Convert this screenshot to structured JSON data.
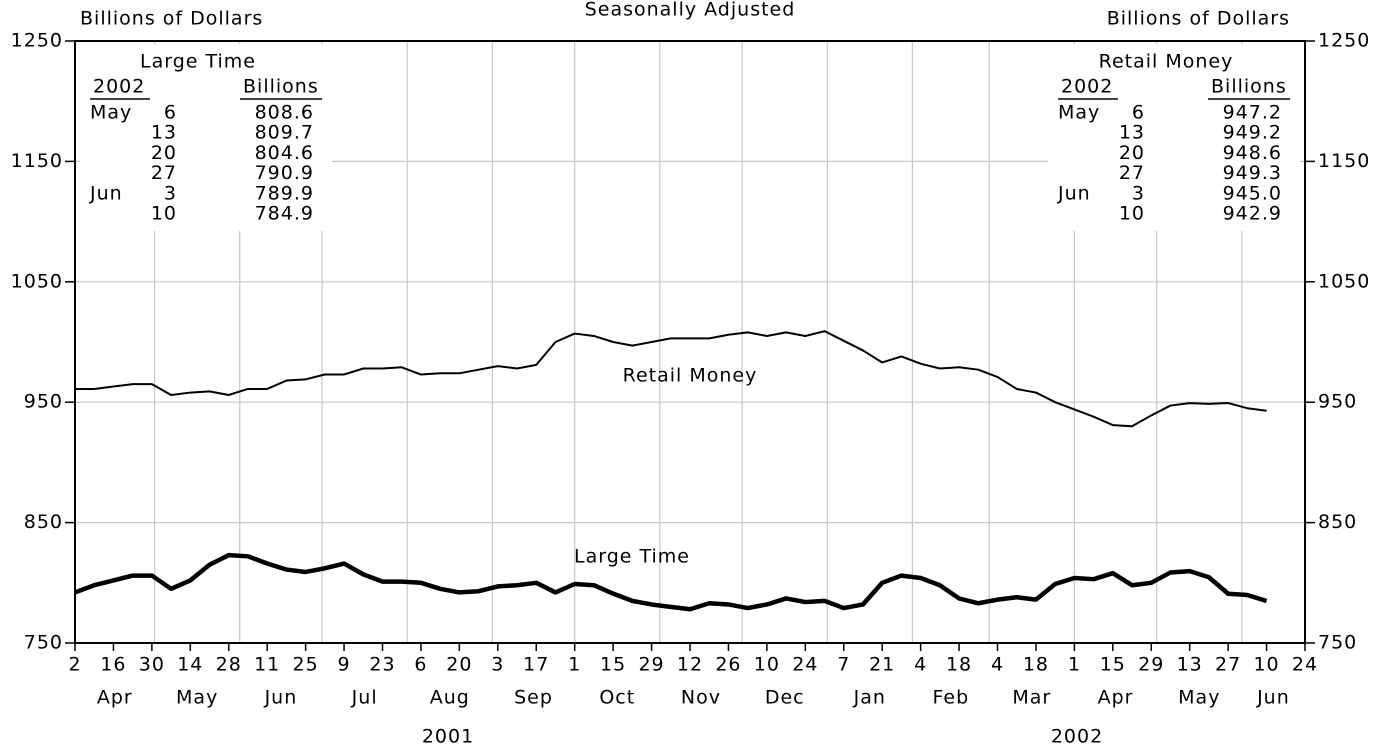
{
  "chart_data": {
    "type": "line",
    "title": "Seasonally Adjusted",
    "y_label_left": "Billions of Dollars",
    "y_label_right": "Billions of Dollars",
    "x": [
      "2001-04-02",
      "2001-04-09",
      "2001-04-16",
      "2001-04-23",
      "2001-04-30",
      "2001-05-07",
      "2001-05-14",
      "2001-05-21",
      "2001-05-28",
      "2001-06-04",
      "2001-06-11",
      "2001-06-18",
      "2001-06-25",
      "2001-07-02",
      "2001-07-09",
      "2001-07-16",
      "2001-07-23",
      "2001-07-30",
      "2001-08-06",
      "2001-08-13",
      "2001-08-20",
      "2001-08-27",
      "2001-09-03",
      "2001-09-10",
      "2001-09-17",
      "2001-09-24",
      "2001-10-01",
      "2001-10-08",
      "2001-10-15",
      "2001-10-22",
      "2001-10-29",
      "2001-11-05",
      "2001-11-12",
      "2001-11-19",
      "2001-11-26",
      "2001-12-03",
      "2001-12-10",
      "2001-12-17",
      "2001-12-24",
      "2001-12-31",
      "2002-01-07",
      "2002-01-14",
      "2002-01-21",
      "2002-01-28",
      "2002-02-04",
      "2002-02-11",
      "2002-02-18",
      "2002-02-25",
      "2002-03-04",
      "2002-03-11",
      "2002-03-18",
      "2002-03-25",
      "2002-04-01",
      "2002-04-08",
      "2002-04-15",
      "2002-04-22",
      "2002-04-29",
      "2002-05-06",
      "2002-05-13",
      "2002-05-20",
      "2002-05-27",
      "2002-06-03",
      "2002-06-10"
    ],
    "xlim": [
      "2001-04-02",
      "2002-06-24"
    ],
    "xticks": [
      {
        "value": "2001-04-02",
        "label": "2"
      },
      {
        "value": "2001-04-16",
        "label": "16"
      },
      {
        "value": "2001-04-30",
        "label": "30"
      },
      {
        "value": "2001-05-14",
        "label": "14"
      },
      {
        "value": "2001-05-28",
        "label": "28"
      },
      {
        "value": "2001-06-11",
        "label": "11"
      },
      {
        "value": "2001-06-25",
        "label": "25"
      },
      {
        "value": "2001-07-09",
        "label": "9"
      },
      {
        "value": "2001-07-23",
        "label": "23"
      },
      {
        "value": "2001-08-06",
        "label": "6"
      },
      {
        "value": "2001-08-20",
        "label": "20"
      },
      {
        "value": "2001-09-03",
        "label": "3"
      },
      {
        "value": "2001-09-17",
        "label": "17"
      },
      {
        "value": "2001-10-01",
        "label": "1"
      },
      {
        "value": "2001-10-15",
        "label": "15"
      },
      {
        "value": "2001-10-29",
        "label": "29"
      },
      {
        "value": "2001-11-12",
        "label": "12"
      },
      {
        "value": "2001-11-26",
        "label": "26"
      },
      {
        "value": "2001-12-10",
        "label": "10"
      },
      {
        "value": "2001-12-24",
        "label": "24"
      },
      {
        "value": "2002-01-07",
        "label": "7"
      },
      {
        "value": "2002-01-21",
        "label": "21"
      },
      {
        "value": "2002-02-04",
        "label": "4"
      },
      {
        "value": "2002-02-18",
        "label": "18"
      },
      {
        "value": "2002-03-04",
        "label": "4"
      },
      {
        "value": "2002-03-18",
        "label": "18"
      },
      {
        "value": "2002-04-01",
        "label": "1"
      },
      {
        "value": "2002-04-15",
        "label": "15"
      },
      {
        "value": "2002-04-29",
        "label": "29"
      },
      {
        "value": "2002-05-13",
        "label": "13"
      },
      {
        "value": "2002-05-27",
        "label": "27"
      },
      {
        "value": "2002-06-10",
        "label": "10"
      },
      {
        "value": "2002-06-24",
        "label": "24"
      }
    ],
    "xgrid": [
      "2001-05-01",
      "2001-06-01",
      "2001-07-01",
      "2001-08-01",
      "2001-09-01",
      "2001-10-01",
      "2001-11-01",
      "2001-12-01",
      "2002-01-01",
      "2002-02-01",
      "2002-03-01",
      "2002-04-01",
      "2002-05-01",
      "2002-06-01"
    ],
    "month_labels": [
      "Apr",
      "May",
      "Jun",
      "Jul",
      "Aug",
      "Sep",
      "Oct",
      "Nov",
      "Dec",
      "Jan",
      "Feb",
      "Mar",
      "Apr",
      "May",
      "Jun"
    ],
    "year_labels": [
      "2001",
      "2002"
    ],
    "ylim": [
      750,
      1250
    ],
    "yticks": [
      750,
      850,
      950,
      1050,
      1150,
      1250
    ],
    "y2lim": [
      750,
      1250
    ],
    "y2ticks": [
      750,
      850,
      950,
      1050,
      1150,
      1250
    ],
    "grid": true,
    "series": [
      {
        "name": "Retail Money",
        "color": "#000000",
        "line_width": 2,
        "values": [
          961,
          961,
          963,
          965,
          965,
          956,
          958,
          959,
          956,
          961,
          961,
          968,
          969,
          973,
          973,
          978,
          978,
          979,
          973,
          974,
          974,
          977,
          980,
          978,
          981,
          1000,
          1007,
          1005,
          1000,
          997,
          1000,
          1003,
          1003,
          1003,
          1006,
          1008,
          1005,
          1008,
          1005,
          1009,
          1001,
          993,
          983,
          988,
          982,
          978,
          979,
          977,
          971,
          961,
          958,
          950,
          944,
          938,
          931,
          930,
          939,
          947.2,
          949.2,
          948.6,
          949.3,
          945.0,
          942.9
        ]
      },
      {
        "name": "Large Time",
        "color": "#000000",
        "line_width": 4.5,
        "values": [
          792,
          798,
          802,
          806,
          806,
          795,
          802,
          815,
          823,
          822,
          816,
          811,
          809,
          812,
          816,
          807,
          801,
          801,
          800,
          795,
          792,
          793,
          797,
          798,
          800,
          792,
          799,
          798,
          791,
          785,
          782,
          780,
          778,
          783,
          782,
          779,
          782,
          787,
          784,
          785,
          779,
          782,
          800,
          806,
          804,
          798,
          787,
          783,
          786,
          788,
          786,
          799,
          804,
          803,
          808,
          798,
          800,
          808.6,
          809.7,
          804.6,
          790.9,
          789.9,
          784.9
        ]
      }
    ],
    "tables": [
      {
        "title": "Large Time",
        "year": "2002",
        "unit": "Billions",
        "rows": [
          {
            "month": "May",
            "day": "6",
            "value": "808.6"
          },
          {
            "day": "13",
            "value": "809.7"
          },
          {
            "day": "20",
            "value": "804.6"
          },
          {
            "day": "27",
            "value": "790.9"
          },
          {
            "month": "Jun",
            "day": "3",
            "value": "789.9"
          },
          {
            "day": "10",
            "value": "784.9"
          }
        ]
      },
      {
        "title": "Retail Money",
        "year": "2002",
        "unit": "Billions",
        "rows": [
          {
            "month": "May",
            "day": "6",
            "value": "947.2"
          },
          {
            "day": "13",
            "value": "949.2"
          },
          {
            "day": "20",
            "value": "948.6"
          },
          {
            "day": "27",
            "value": "949.3"
          },
          {
            "month": "Jun",
            "day": "3",
            "value": "945.0"
          },
          {
            "day": "10",
            "value": "942.9"
          }
        ]
      }
    ]
  }
}
